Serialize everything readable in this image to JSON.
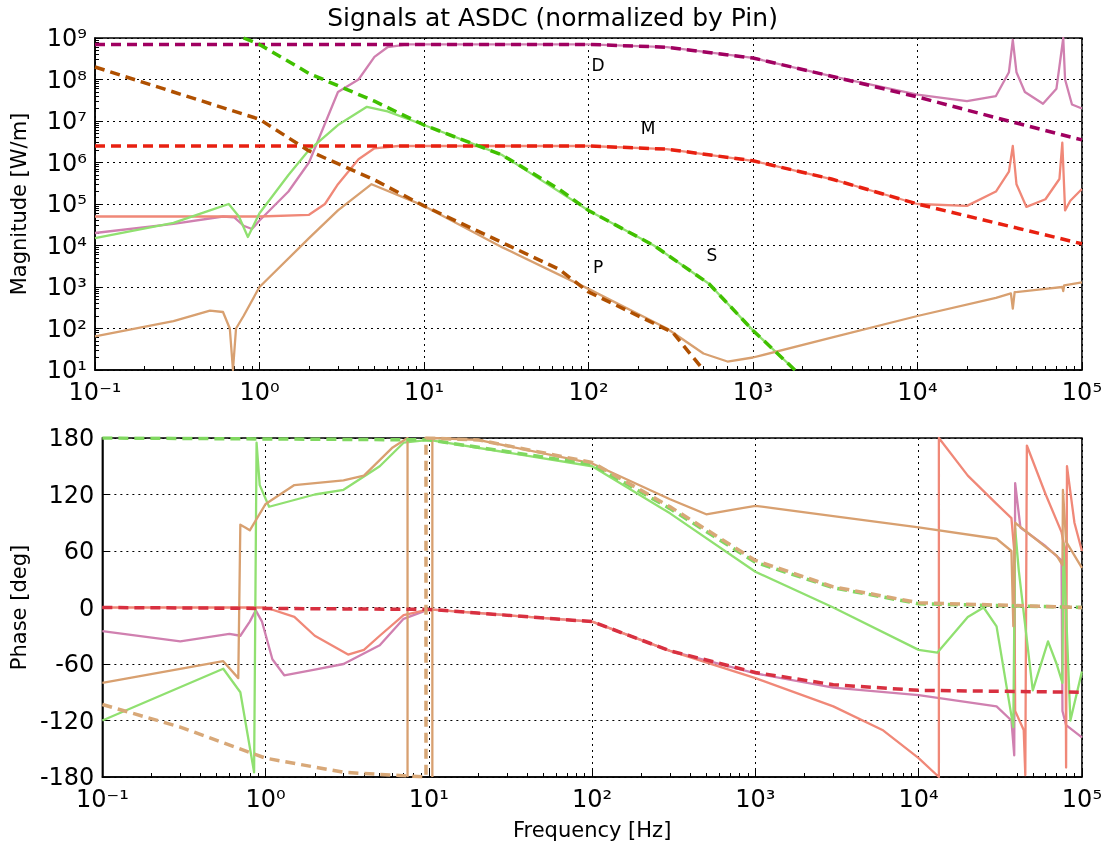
{
  "chart_data": [
    {
      "type": "line",
      "title": "Signals at ASDC (normalized by Pin)",
      "ylabel": "Magnitude [W/m]",
      "log": "xy",
      "grid": true,
      "marker": "none",
      "xlim": [
        0.1,
        100000
      ],
      "xticks": [
        {
          "value": 0.1,
          "label": "10⁻¹"
        },
        {
          "value": 1,
          "label": "10⁰"
        },
        {
          "value": 10,
          "label": "10¹"
        },
        {
          "value": 100,
          "label": "10²"
        },
        {
          "value": 1000,
          "label": "10³"
        },
        {
          "value": 10000,
          "label": "10⁴"
        },
        {
          "value": 100000,
          "label": "10⁵"
        }
      ],
      "ylim": [
        10,
        1000000000
      ],
      "yticks": [
        {
          "value": 10,
          "label": "10¹"
        },
        {
          "value": 100,
          "label": "10²"
        },
        {
          "value": 1000,
          "label": "10³"
        },
        {
          "value": 10000,
          "label": "10⁴"
        },
        {
          "value": 100000,
          "label": "10⁵"
        },
        {
          "value": 1000000,
          "label": "10⁶"
        },
        {
          "value": 10000000,
          "label": "10⁷"
        },
        {
          "value": 100000000,
          "label": "10⁸"
        },
        {
          "value": 1000000000,
          "label": "10⁹"
        }
      ],
      "annotations": [
        "D",
        "M",
        "S",
        "P"
      ],
      "series": [
        {
          "color": "#d080b0",
          "line_style": "solid",
          "x": [
            0.1,
            0.3,
            0.6,
            0.7,
            0.8,
            0.9,
            1,
            1.5,
            2,
            3,
            4,
            5,
            6,
            8,
            10,
            100,
            300,
            1000,
            3000,
            10000,
            20000,
            30000,
            36000,
            38000,
            40000,
            45000,
            58000,
            70000,
            77000,
            79000,
            87000,
            100000
          ],
          "values": [
            20000,
            33000,
            50000,
            48000,
            30000,
            25000,
            40000,
            200000,
            1000000,
            50000000,
            100000000,
            350000000,
            600000000,
            700000000,
            700000000,
            700000000,
            600000000,
            330000000,
            120000000,
            43000000,
            30000000,
            40000000,
            150000000,
            900000000,
            150000000,
            50000000,
            26000000,
            60000000,
            1000000000,
            100000000,
            25000000,
            20000000
          ]
        },
        {
          "color": "#f08878",
          "line_style": "solid",
          "x": [
            0.1,
            1,
            2,
            2.5,
            3,
            4,
            5,
            7,
            10,
            100,
            300,
            1000,
            3000,
            10000,
            20000,
            30000,
            36000,
            38000,
            40000,
            46000,
            60000,
            73000,
            76000,
            79000,
            85000,
            100000
          ],
          "values": [
            50000,
            50000,
            55000,
            100000,
            300000,
            1200000,
            2200000,
            2500000,
            2500000,
            2500000,
            2100000,
            1100000,
            400000,
            100000,
            90000,
            200000,
            600000,
            2500000,
            300000,
            85000,
            130000,
            400000,
            3000000,
            70000,
            120000,
            230000
          ]
        },
        {
          "color": "#90e070",
          "line_style": "solid",
          "x": [
            0.1,
            0.3,
            0.5,
            0.65,
            0.75,
            0.85,
            1,
            1.5,
            2,
            3,
            4.5,
            6,
            10,
            30,
            100,
            250,
            540,
            1000,
            1800
          ],
          "values": [
            15000,
            35000,
            70000,
            100000,
            50000,
            16000,
            60000,
            500000,
            2000000,
            8000000,
            22000000,
            17000000,
            8000000,
            1500000,
            70000,
            10000,
            1200,
            90,
            10
          ]
        },
        {
          "color": "#d8a070",
          "line_style": "solid",
          "x": [
            0.1,
            0.3,
            0.5,
            0.6,
            0.66,
            0.69,
            0.72,
            0.8,
            1,
            2,
            3,
            4.8,
            10,
            30,
            100,
            300,
            500,
            700,
            1000,
            3000,
            10000,
            30000,
            37000,
            38000,
            39000,
            60000,
            76000,
            77000,
            78000,
            100000
          ],
          "values": [
            65,
            150,
            270,
            250,
            100,
            10,
            100,
            200,
            1000,
            15000,
            70000,
            300000,
            90000,
            9000,
            900,
            100,
            25,
            16,
            20,
            60,
            200,
            550,
            700,
            300,
            750,
            900,
            1000,
            800,
            1100,
            1300
          ]
        },
        {
          "color": "#a00060",
          "line_style": "dashed",
          "x": [
            0.1,
            100,
            300,
            1000,
            3000,
            10000,
            30000,
            100000
          ],
          "values": [
            700000000,
            700000000,
            600000000,
            330000000,
            120000000,
            38000000,
            12000000,
            3500000
          ]
        },
        {
          "color": "#e82010",
          "line_style": "dashed",
          "x": [
            0.1,
            100,
            300,
            1000,
            3000,
            10000,
            100000
          ],
          "values": [
            2500000,
            2500000,
            2100000,
            1100000,
            400000,
            100000,
            11000
          ]
        },
        {
          "color": "#40c000",
          "line_style": "dashed",
          "x": [
            0.8,
            1,
            2,
            5,
            10,
            30,
            66,
            100,
            250,
            540,
            1000,
            1800
          ],
          "values": [
            1000000000,
            700000000,
            140000000,
            30000000,
            8000000,
            1500000,
            230000,
            70000,
            10000,
            1200,
            90,
            10
          ]
        },
        {
          "color": "#b05000",
          "line_style": "dashed",
          "x": [
            0.1,
            0.3,
            1,
            2,
            5,
            10,
            66,
            100,
            326,
            500
          ],
          "values": [
            200000000,
            50000000,
            11000000,
            1900000,
            380000,
            90000,
            2700,
            760,
            80,
            10
          ]
        }
      ]
    },
    {
      "type": "line",
      "xlabel": "Frequency [Hz]",
      "ylabel": "Phase [deg]",
      "log": "x",
      "grid": true,
      "marker": "none",
      "xlim": [
        0.1,
        100000
      ],
      "xticks": [
        {
          "value": 0.1,
          "label": "10⁻¹"
        },
        {
          "value": 1,
          "label": "10⁰"
        },
        {
          "value": 10,
          "label": "10¹"
        },
        {
          "value": 100,
          "label": "10²"
        },
        {
          "value": 1000,
          "label": "10³"
        },
        {
          "value": 10000,
          "label": "10⁴"
        },
        {
          "value": 100000,
          "label": "10⁵"
        }
      ],
      "ylim": [
        -180,
        180
      ],
      "yticks": [
        -180,
        -120,
        -60,
        0,
        60,
        120,
        180
      ],
      "series": [
        {
          "color": "#d080b0",
          "line_style": "solid",
          "x": [
            0.1,
            0.3,
            0.6,
            0.7,
            0.8,
            0.87,
            0.95,
            1.1,
            1.3,
            2,
            3,
            5,
            7,
            10,
            100,
            300,
            1000,
            3000,
            10000,
            30000,
            37000,
            38500,
            39000,
            42000,
            60000,
            75000,
            76000,
            80000,
            100000
          ],
          "values": [
            -25,
            -36,
            -28,
            -30,
            -15,
            -3,
            -15,
            -55,
            -72,
            -66,
            -60,
            -40,
            -12,
            -2,
            -15,
            -46,
            -70,
            -85,
            -93,
            -105,
            -120,
            -157,
            132,
            85,
            65,
            50,
            -110,
            -125,
            -138
          ]
        },
        {
          "color": "#f08878",
          "line_style": "solid",
          "x": [
            0.1,
            1,
            1.5,
            2,
            3.2,
            4,
            5,
            7,
            10,
            100,
            300,
            1000,
            3000,
            6000,
            10000,
            13300,
            13300,
            20000,
            30000,
            37000,
            38500,
            39000,
            44000,
            45000,
            46000,
            60000,
            75000,
            79000,
            80000,
            81000,
            90000,
            100000
          ],
          "values": [
            0,
            0,
            -10,
            -30,
            -50,
            -45,
            -30,
            -8,
            -2,
            -15,
            -46,
            -75,
            -105,
            -130,
            -160,
            -180,
            180,
            140,
            110,
            95,
            60,
            -110,
            -130,
            -178,
            172,
            120,
            80,
            60,
            -170,
            150,
            90,
            60
          ]
        },
        {
          "color": "#90e070",
          "line_style": "solid",
          "x": [
            0.1,
            0.55,
            0.7,
            0.85,
            0.88,
            0.92,
            1.05,
            2,
            3,
            5,
            7,
            10,
            100,
            300,
            1000,
            3000,
            10000,
            13000,
            20000,
            25000,
            30000,
            38000,
            39000,
            41000,
            50000,
            62000,
            70000,
            76000,
            77000,
            85000,
            100000
          ],
          "values": [
            -120,
            -65,
            -90,
            -175,
            175,
            130,
            107,
            120,
            125,
            150,
            175,
            178,
            150,
            100,
            38,
            0,
            -45,
            -48,
            -10,
            0,
            -20,
            -127,
            84,
            40,
            -88,
            -36,
            -60,
            -80,
            68,
            -120,
            -68
          ]
        },
        {
          "color": "#d8a070",
          "line_style": "solid",
          "x": [
            0.1,
            0.55,
            0.68,
            0.7,
            0.75,
            0.8,
            1,
            1.5,
            3,
            4,
            6,
            7.4,
            7.4,
            9,
            10.5,
            10.5,
            20,
            100,
            300,
            500,
            1000,
            3000,
            10000,
            30000,
            37000,
            38000,
            39000,
            70000,
            76000,
            76500,
            80000,
            100000
          ],
          "values": [
            -80,
            -57,
            -75,
            88,
            85,
            82,
            110,
            130,
            135,
            140,
            170,
            180,
            -180,
            null,
            -180,
            180,
            178,
            153,
            115,
            99,
            108,
            97,
            85,
            73,
            60,
            -20,
            90,
            55,
            45,
            125,
            70,
            42
          ]
        },
        {
          "color": "#d83040",
          "line_style": "dashed",
          "x": [
            0.1,
            10,
            100,
            300,
            1000,
            3000,
            10000,
            100000
          ],
          "values": [
            0,
            -2,
            -15,
            -46,
            -69,
            -82,
            -88,
            -90
          ]
        },
        {
          "color": "#80d860",
          "line_style": "dashed",
          "x": [
            0.1,
            10,
            100,
            300,
            1000,
            3000,
            10000,
            100000
          ],
          "values": [
            180,
            178,
            152,
            105,
            48,
            21,
            4,
            0
          ]
        },
        {
          "color": "#d8a878",
          "line_style": "dashed",
          "x": [
            0.1,
            0.3,
            1,
            3,
            9.6,
            9.6,
            20,
            100,
            300,
            1000,
            3000,
            10000,
            100000
          ],
          "values": [
            -103,
            -127,
            -160,
            -175,
            -180,
            180,
            178,
            154,
            107,
            50,
            22,
            5,
            0
          ]
        }
      ]
    }
  ]
}
